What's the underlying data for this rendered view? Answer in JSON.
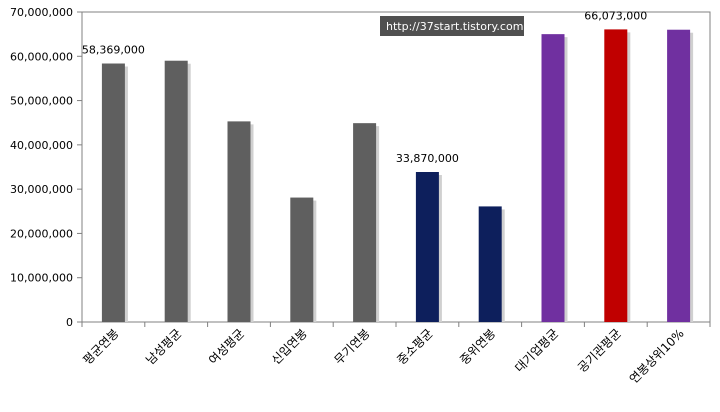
{
  "chart_data": {
    "type": "bar",
    "title": "",
    "xlabel": "",
    "ylabel": "",
    "ylim": [
      0,
      70000000
    ],
    "yticks": [
      0,
      10000000,
      20000000,
      30000000,
      40000000,
      50000000,
      60000000,
      70000000
    ],
    "ytick_labels": [
      "0",
      "10,000,000",
      "20,000,000",
      "30,000,000",
      "40,000,000",
      "50,000,000",
      "60,000,000",
      "70,000,000"
    ],
    "grid": false,
    "categories": [
      "평균연봉",
      "남성평균",
      "여성평균",
      "신입연봉",
      "무기연봉",
      "중소평균",
      "중위연봉",
      "대기업평균",
      "공기관평균",
      "연봉상위10%"
    ],
    "values": [
      58369000,
      59000000,
      45300000,
      28100000,
      44900000,
      33870000,
      26100000,
      65000000,
      66073000,
      66000000
    ],
    "colors": [
      "#5f5f5f",
      "#5f5f5f",
      "#5f5f5f",
      "#5f5f5f",
      "#5f5f5f",
      "#0d1f5c",
      "#0d1f5c",
      "#7030a0",
      "#c00000",
      "#7030a0"
    ],
    "data_labels": [
      {
        "index": 0,
        "text": "58,369,000"
      },
      {
        "index": 5,
        "text": "33,870,000"
      },
      {
        "index": 8,
        "text": "66,073,000"
      }
    ]
  },
  "watermark": "http://37start.tistory.com"
}
